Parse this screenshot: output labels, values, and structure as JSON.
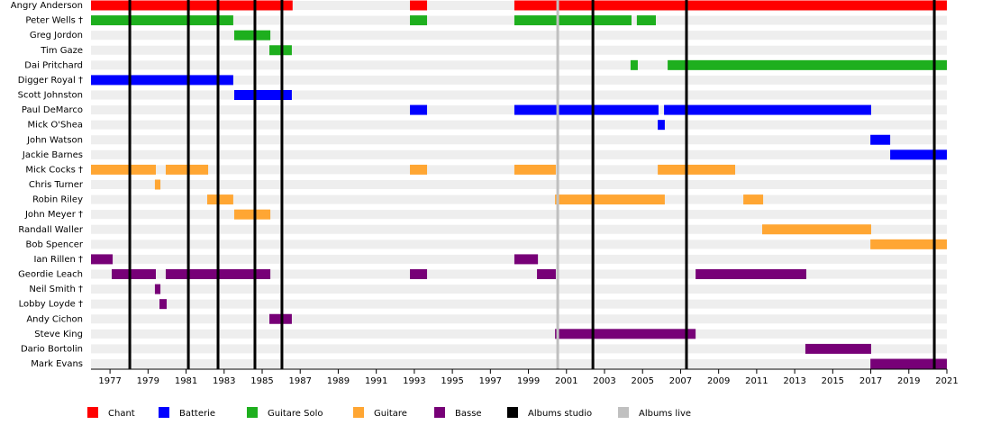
{
  "chart_data": {
    "type": "timeline",
    "categories": [
      "Angry Anderson",
      "Peter Wells †",
      "Greg Jordon",
      "Tim Gaze",
      "Dai Pritchard",
      "Digger Royal †",
      "Scott Johnston",
      "Paul DeMarco",
      "Mick O'Shea",
      "John Watson",
      "Jackie Barnes",
      "Mick Cocks †",
      "Chris Turner",
      "Robin Riley",
      "John Meyer †",
      "Randall Waller",
      "Bob Spencer",
      "Ian Rillen †",
      "Geordie Leach",
      "Neil Smith †",
      "Lobby Loyde †",
      "Andy Cichon",
      "Steve King",
      "Dario Bortolin",
      "Mark Evans"
    ],
    "xlim": [
      1976,
      2021
    ],
    "xticks": [
      1977,
      1979,
      1981,
      1983,
      1985,
      1987,
      1989,
      1991,
      1993,
      1995,
      1997,
      1999,
      2001,
      2003,
      2005,
      2007,
      2009,
      2011,
      2013,
      2015,
      2017,
      2019,
      2021
    ],
    "series": [
      {
        "name": "Chant",
        "color": "#ff0000",
        "values": [
          [
            [
              1976,
              1986.6
            ],
            [
              1992.77,
              1993.67
            ],
            [
              1998.26,
              2021
            ]
          ],
          [],
          [],
          [],
          [],
          [],
          [],
          [],
          [],
          [],
          [],
          [],
          [],
          [],
          [],
          [],
          [],
          [],
          [],
          [],
          [],
          [],
          [],
          [],
          []
        ]
      },
      {
        "name": "Batterie",
        "color": "#0000ff",
        "values": [
          [],
          [],
          [],
          [],
          [],
          [
            [
              1976,
              1983.48
            ]
          ],
          [
            [
              1983.53,
              1986.56
            ]
          ],
          [
            [
              1992.77,
              1993.67
            ],
            [
              1998.26,
              2005.84
            ],
            [
              2006.13,
              2017.02
            ]
          ],
          [
            [
              2005.8,
              2006.17
            ]
          ],
          [
            [
              2016.98,
              2018.02
            ]
          ],
          [
            [
              2018.02,
              2021
            ]
          ],
          [],
          [],
          [],
          [],
          [],
          [],
          [],
          [],
          [],
          [],
          [],
          [],
          [],
          []
        ]
      },
      {
        "name": "Guitare Solo",
        "color": "#1eaf1e",
        "values": [
          [],
          [
            [
              1976,
              1983.48
            ],
            [
              1992.77,
              1993.67
            ],
            [
              1998.26,
              2004.42
            ],
            [
              2004.7,
              2005.7
            ]
          ],
          [
            [
              1983.53,
              1985.43
            ]
          ],
          [
            [
              1985.38,
              1986.56
            ]
          ],
          [
            [
              2004.37,
              2004.75
            ],
            [
              2006.32,
              2021
            ]
          ],
          [],
          [],
          [],
          [],
          [],
          [],
          [],
          [],
          [],
          [],
          [],
          [],
          [],
          [],
          [],
          [],
          [],
          [],
          [],
          []
        ]
      },
      {
        "name": "Guitare",
        "color": "#ffa633",
        "values": [
          [],
          [],
          [],
          [],
          [],
          [],
          [],
          [],
          [],
          [],
          [],
          [
            [
              1976,
              1979.41
            ],
            [
              1979.93,
              1982.16
            ],
            [
              1992.77,
              1993.67
            ],
            [
              1998.26,
              2000.44
            ],
            [
              2005.8,
              2009.87
            ]
          ],
          [
            [
              1979.36,
              1979.65
            ]
          ],
          [
            [
              1982.11,
              1983.48
            ],
            [
              2000.4,
              2006.17
            ],
            [
              2010.3,
              2011.34
            ]
          ],
          [
            [
              1983.53,
              1985.43
            ]
          ],
          [
            [
              2011.29,
              2017.02
            ]
          ],
          [
            [
              2016.98,
              2021
            ]
          ],
          [],
          [],
          [],
          [],
          [],
          [],
          [],
          []
        ]
      },
      {
        "name": "Basse",
        "color": "#770077",
        "values": [
          [],
          [],
          [],
          [],
          [],
          [],
          [],
          [],
          [],
          [],
          [],
          [],
          [],
          [],
          [],
          [],
          [],
          [
            [
              1976,
              1977.14
            ],
            [
              1998.26,
              1999.5
            ]
          ],
          [
            [
              1977.09,
              1979.41
            ],
            [
              1979.93,
              1985.43
            ],
            [
              1992.77,
              1993.67
            ],
            [
              1999.45,
              2000.44
            ],
            [
              2007.79,
              2013.61
            ]
          ],
          [
            [
              1979.36,
              1979.65
            ]
          ],
          [
            [
              1979.6,
              1979.98
            ]
          ],
          [
            [
              1985.38,
              1986.56
            ]
          ],
          [
            [
              2000.4,
              2007.79
            ]
          ],
          [
            [
              2013.56,
              2017.02
            ]
          ],
          [
            [
              2016.98,
              2021
            ]
          ]
        ]
      }
    ],
    "markers": [
      {
        "name": "Albums studio",
        "color": "#000000",
        "values": [
          1978.04,
          1981.12,
          1982.68,
          1984.62,
          1986.04,
          2002.39,
          2007.31,
          2020.34
        ]
      },
      {
        "name": "Albums live",
        "color": "#c0c0c0",
        "values": [
          2000.54
        ]
      }
    ]
  }
}
